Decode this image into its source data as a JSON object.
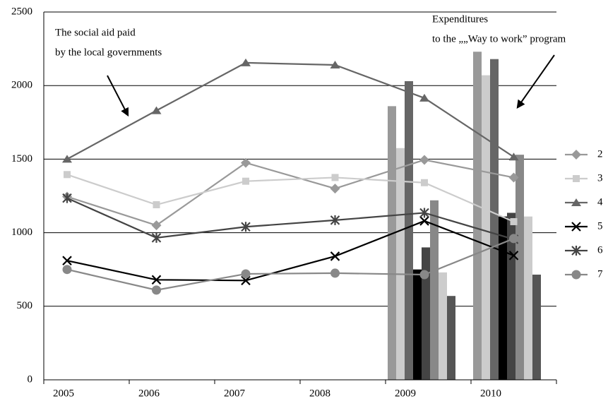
{
  "chart_data": {
    "type": "line",
    "categories": [
      "2005",
      "2006",
      "2007",
      "2008",
      "2009",
      "2010"
    ],
    "ylim": [
      0,
      2500
    ],
    "yticks": [
      0,
      500,
      1000,
      1500,
      2000,
      2500
    ],
    "grid": true,
    "annotations": [
      {
        "lines": [
          "The social aid paid",
          "by the local governments"
        ]
      },
      {
        "lines": [
          "Expenditures",
          "to the „„Way to work” program"
        ]
      }
    ],
    "series": [
      {
        "name": "2",
        "color": "#999999",
        "marker": "diamond",
        "values": [
          1245,
          1050,
          1475,
          1300,
          1495,
          1375
        ]
      },
      {
        "name": "3",
        "color": "#cccccc",
        "marker": "square",
        "values": [
          1395,
          1190,
          1350,
          1375,
          1340,
          1075
        ]
      },
      {
        "name": "4",
        "color": "#666666",
        "marker": "triangle",
        "values": [
          1500,
          1830,
          2155,
          2140,
          1915,
          1515
        ]
      },
      {
        "name": "5",
        "color": "#000000",
        "marker": "x",
        "values": [
          810,
          680,
          675,
          840,
          1080,
          845
        ]
      },
      {
        "name": "6",
        "color": "#444444",
        "marker": "asterisk",
        "values": [
          1235,
          965,
          1040,
          1085,
          1135,
          955
        ]
      },
      {
        "name": "7",
        "color": "#888888",
        "marker": "circle",
        "values": [
          750,
          610,
          720,
          725,
          715,
          960
        ]
      }
    ],
    "bar_series": [
      {
        "color": "#999999",
        "values": [
          null,
          null,
          null,
          null,
          1860,
          2230
        ]
      },
      {
        "color": "#cccccc",
        "values": [
          null,
          null,
          null,
          null,
          1575,
          2070
        ]
      },
      {
        "color": "#666666",
        "values": [
          null,
          null,
          null,
          null,
          2030,
          2180
        ]
      },
      {
        "color": "#000000",
        "values": [
          null,
          null,
          null,
          null,
          750,
          1110
        ]
      },
      {
        "color": "#444444",
        "values": [
          null,
          null,
          null,
          null,
          900,
          1135
        ]
      },
      {
        "color": "#888888",
        "values": [
          null,
          null,
          null,
          null,
          1220,
          1530
        ]
      },
      {
        "color": "#cccccc",
        "values": [
          null,
          null,
          null,
          null,
          730,
          1110
        ]
      },
      {
        "color": "#555555",
        "values": [
          null,
          null,
          null,
          null,
          570,
          715
        ]
      }
    ]
  }
}
